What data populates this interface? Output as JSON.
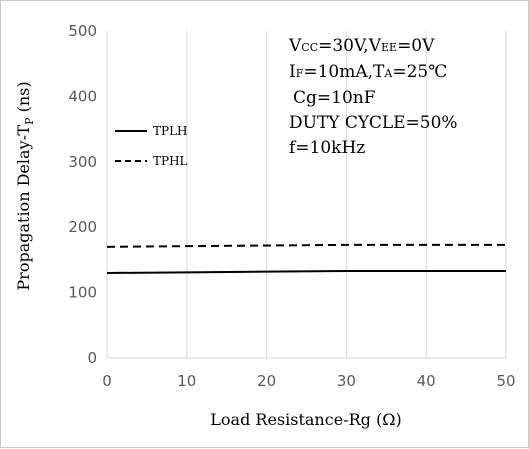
{
  "chart_data": {
    "type": "line",
    "xlabel": "Load Resistance-Rg (Ω)",
    "ylabel_main": "Propagation Delay-T",
    "ylabel_sub": "P",
    "ylabel_unit": " (ns)",
    "xlim": [
      0,
      50
    ],
    "ylim": [
      0,
      500
    ],
    "x_ticks": [
      0,
      10,
      20,
      30,
      40,
      50
    ],
    "y_ticks": [
      0,
      100,
      200,
      300,
      400,
      500
    ],
    "grid": "vertical",
    "legend_position": "left",
    "series": [
      {
        "name": "TPLH",
        "style": "solid",
        "x": [
          0,
          10,
          20,
          30,
          40,
          50
        ],
        "values": [
          130,
          131,
          132,
          133,
          133,
          133
        ]
      },
      {
        "name": "TPHL",
        "style": "dashed",
        "x": [
          0,
          10,
          20,
          30,
          40,
          50
        ],
        "values": [
          170,
          171,
          172,
          173,
          173,
          173
        ]
      }
    ],
    "annotations": {
      "line1": {
        "a": "V",
        "a_sub": "CC",
        "b": "=30V,V",
        "b_sub": "EE",
        "c": "=0V"
      },
      "line2": {
        "a": "I",
        "a_sub": "F",
        "b": "=10mA,T",
        "b_sub": "A",
        "c": "=25℃"
      },
      "line3": "Cg=10nF",
      "line4": "DUTY CYCLE=50%",
      "line5": "f=10kHz"
    }
  },
  "colors": {
    "grid": "#d9d9d9",
    "line": "#000000",
    "tick": "#595959",
    "border": "#c8c8c8"
  }
}
